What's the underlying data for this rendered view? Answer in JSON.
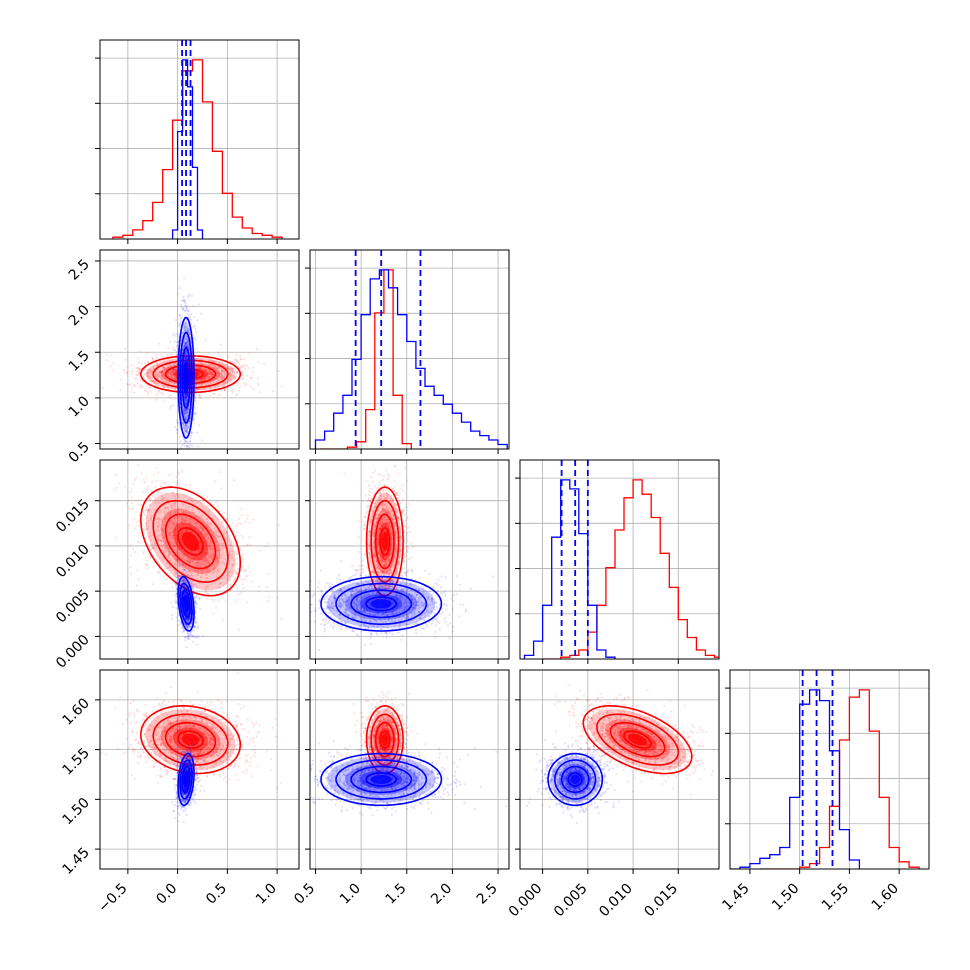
{
  "figure": {
    "type": "corner_plot",
    "layout": "4x4 lower-triangular",
    "grid": true
  },
  "colors": {
    "red": "#ff0000",
    "blue": "#0000ff",
    "grid": "#b0b0b0"
  },
  "chart_data": {
    "type": "corner",
    "parameters": [
      {
        "range": [
          -0.78,
          1.22
        ],
        "ticks": [
          "−0.5",
          "0.0",
          "0.5",
          "1.0"
        ],
        "tick_values": [
          -0.5,
          0.0,
          0.5,
          1.0
        ]
      },
      {
        "range": [
          0.44,
          2.62
        ],
        "ticks": [
          "0.5",
          "1.0",
          "1.5",
          "2.0",
          "2.5"
        ],
        "tick_values": [
          0.5,
          1.0,
          1.5,
          2.0,
          2.5
        ]
      },
      {
        "range": [
          -0.0025,
          0.0195
        ],
        "ticks": [
          "0.000",
          "0.005",
          "0.010",
          "0.015"
        ],
        "tick_values": [
          0.0,
          0.005,
          0.01,
          0.015
        ]
      },
      {
        "range": [
          1.43,
          1.63
        ],
        "ticks": [
          "1.45",
          "1.50",
          "1.55",
          "1.60"
        ],
        "tick_values": [
          1.45,
          1.5,
          1.55,
          1.6
        ]
      }
    ],
    "series": [
      {
        "color": "#ff0000",
        "means": [
          0.13,
          1.26,
          0.0105,
          1.56
        ],
        "sds": [
          0.25,
          0.1,
          0.003,
          0.017
        ],
        "correlations": [
          [
            0,
            1,
            0.0
          ],
          [
            0,
            2,
            -0.4
          ],
          [
            0,
            3,
            -0.15
          ],
          [
            1,
            2,
            0.0
          ],
          [
            1,
            3,
            0.0
          ],
          [
            2,
            3,
            -0.5
          ]
        ],
        "quantiles": [],
        "histograms": [
          {
            "bins": [
              -0.65,
              -0.55,
              -0.45,
              -0.35,
              -0.25,
              -0.15,
              -0.05,
              0.05,
              0.15,
              0.25,
              0.35,
              0.45,
              0.55,
              0.65,
              0.75,
              0.85,
              0.95,
              1.05
            ],
            "counts": [
              1,
              2,
              5,
              10,
              20,
              38,
              65,
              92,
              98,
              75,
              48,
              25,
              12,
              6,
              3,
              2,
              1
            ]
          },
          {
            "bins": [
              0.55,
              0.65,
              0.75,
              0.85,
              0.95,
              1.05,
              1.15,
              1.25,
              1.35,
              1.45,
              1.55
            ],
            "counts": [
              0,
              0,
              0,
              1,
              4,
              22,
              76,
              100,
              30,
              3
            ]
          },
          {
            "bins": [
              0.0,
              0.001,
              0.002,
              0.003,
              0.004,
              0.005,
              0.006,
              0.007,
              0.008,
              0.009,
              0.01,
              0.011,
              0.012,
              0.013,
              0.014,
              0.015,
              0.016,
              0.017,
              0.018,
              0.019,
              0.02
            ],
            "counts": [
              0,
              0,
              1,
              2,
              5,
              15,
              30,
              51,
              72,
              90,
              100,
              92,
              79,
              59,
              40,
              22,
              12,
              5,
              2,
              1
            ]
          },
          {
            "bins": [
              1.46,
              1.47,
              1.48,
              1.49,
              1.5,
              1.51,
              1.52,
              1.53,
              1.54,
              1.55,
              1.56,
              1.57,
              1.58,
              1.59,
              1.6,
              1.61,
              1.62
            ],
            "counts": [
              0,
              0,
              0,
              0,
              1,
              3,
              12,
              35,
              72,
              96,
              100,
              77,
              40,
              12,
              4,
              1
            ]
          }
        ]
      },
      {
        "color": "#0000ff",
        "means": [
          0.085,
          1.22,
          0.0036,
          1.52
        ],
        "sds": [
          0.04,
          0.33,
          0.0015,
          0.013
        ],
        "correlations": [
          [
            0,
            1,
            0.0
          ],
          [
            0,
            2,
            -0.35
          ],
          [
            0,
            3,
            0.25
          ],
          [
            1,
            2,
            0.0
          ],
          [
            1,
            3,
            0.0
          ],
          [
            2,
            3,
            0.0
          ]
        ],
        "quantiles": [
          [
            0.045,
            0.085,
            0.13
          ],
          [
            0.94,
            1.22,
            1.65
          ],
          [
            0.0021,
            0.0036,
            0.005
          ],
          [
            1.503,
            1.517,
            1.533
          ]
        ],
        "histograms": [
          {
            "bins": [
              -0.05,
              0.0,
              0.05,
              0.1,
              0.15,
              0.2,
              0.25
            ],
            "counts": [
              5,
              60,
              100,
              85,
              40,
              5
            ]
          },
          {
            "bins": [
              0.5,
              0.6,
              0.7,
              0.8,
              0.9,
              1.0,
              1.1,
              1.2,
              1.3,
              1.4,
              1.5,
              1.6,
              1.7,
              1.8,
              1.9,
              2.0,
              2.1,
              2.2,
              2.3,
              2.4,
              2.5,
              2.6
            ],
            "counts": [
              2,
              4,
              8,
              12,
              20,
              30,
              38,
              40,
              36,
              30,
              24,
              18,
              14,
              12,
              10,
              8,
              6,
              4,
              3,
              2,
              1
            ]
          },
          {
            "bins": [
              -0.002,
              -0.001,
              0.0,
              0.001,
              0.002,
              0.003,
              0.004,
              0.005,
              0.006,
              0.007,
              0.008
            ],
            "counts": [
              2,
              10,
              30,
              68,
              100,
              95,
              70,
              30,
              5,
              1
            ]
          },
          {
            "bins": [
              1.43,
              1.44,
              1.45,
              1.46,
              1.47,
              1.48,
              1.49,
              1.5,
              1.51,
              1.52,
              1.53,
              1.54,
              1.55,
              1.56
            ],
            "counts": [
              0,
              1,
              3,
              6,
              8,
              12,
              40,
              92,
              100,
              94,
              66,
              22,
              5
            ]
          }
        ]
      }
    ]
  }
}
